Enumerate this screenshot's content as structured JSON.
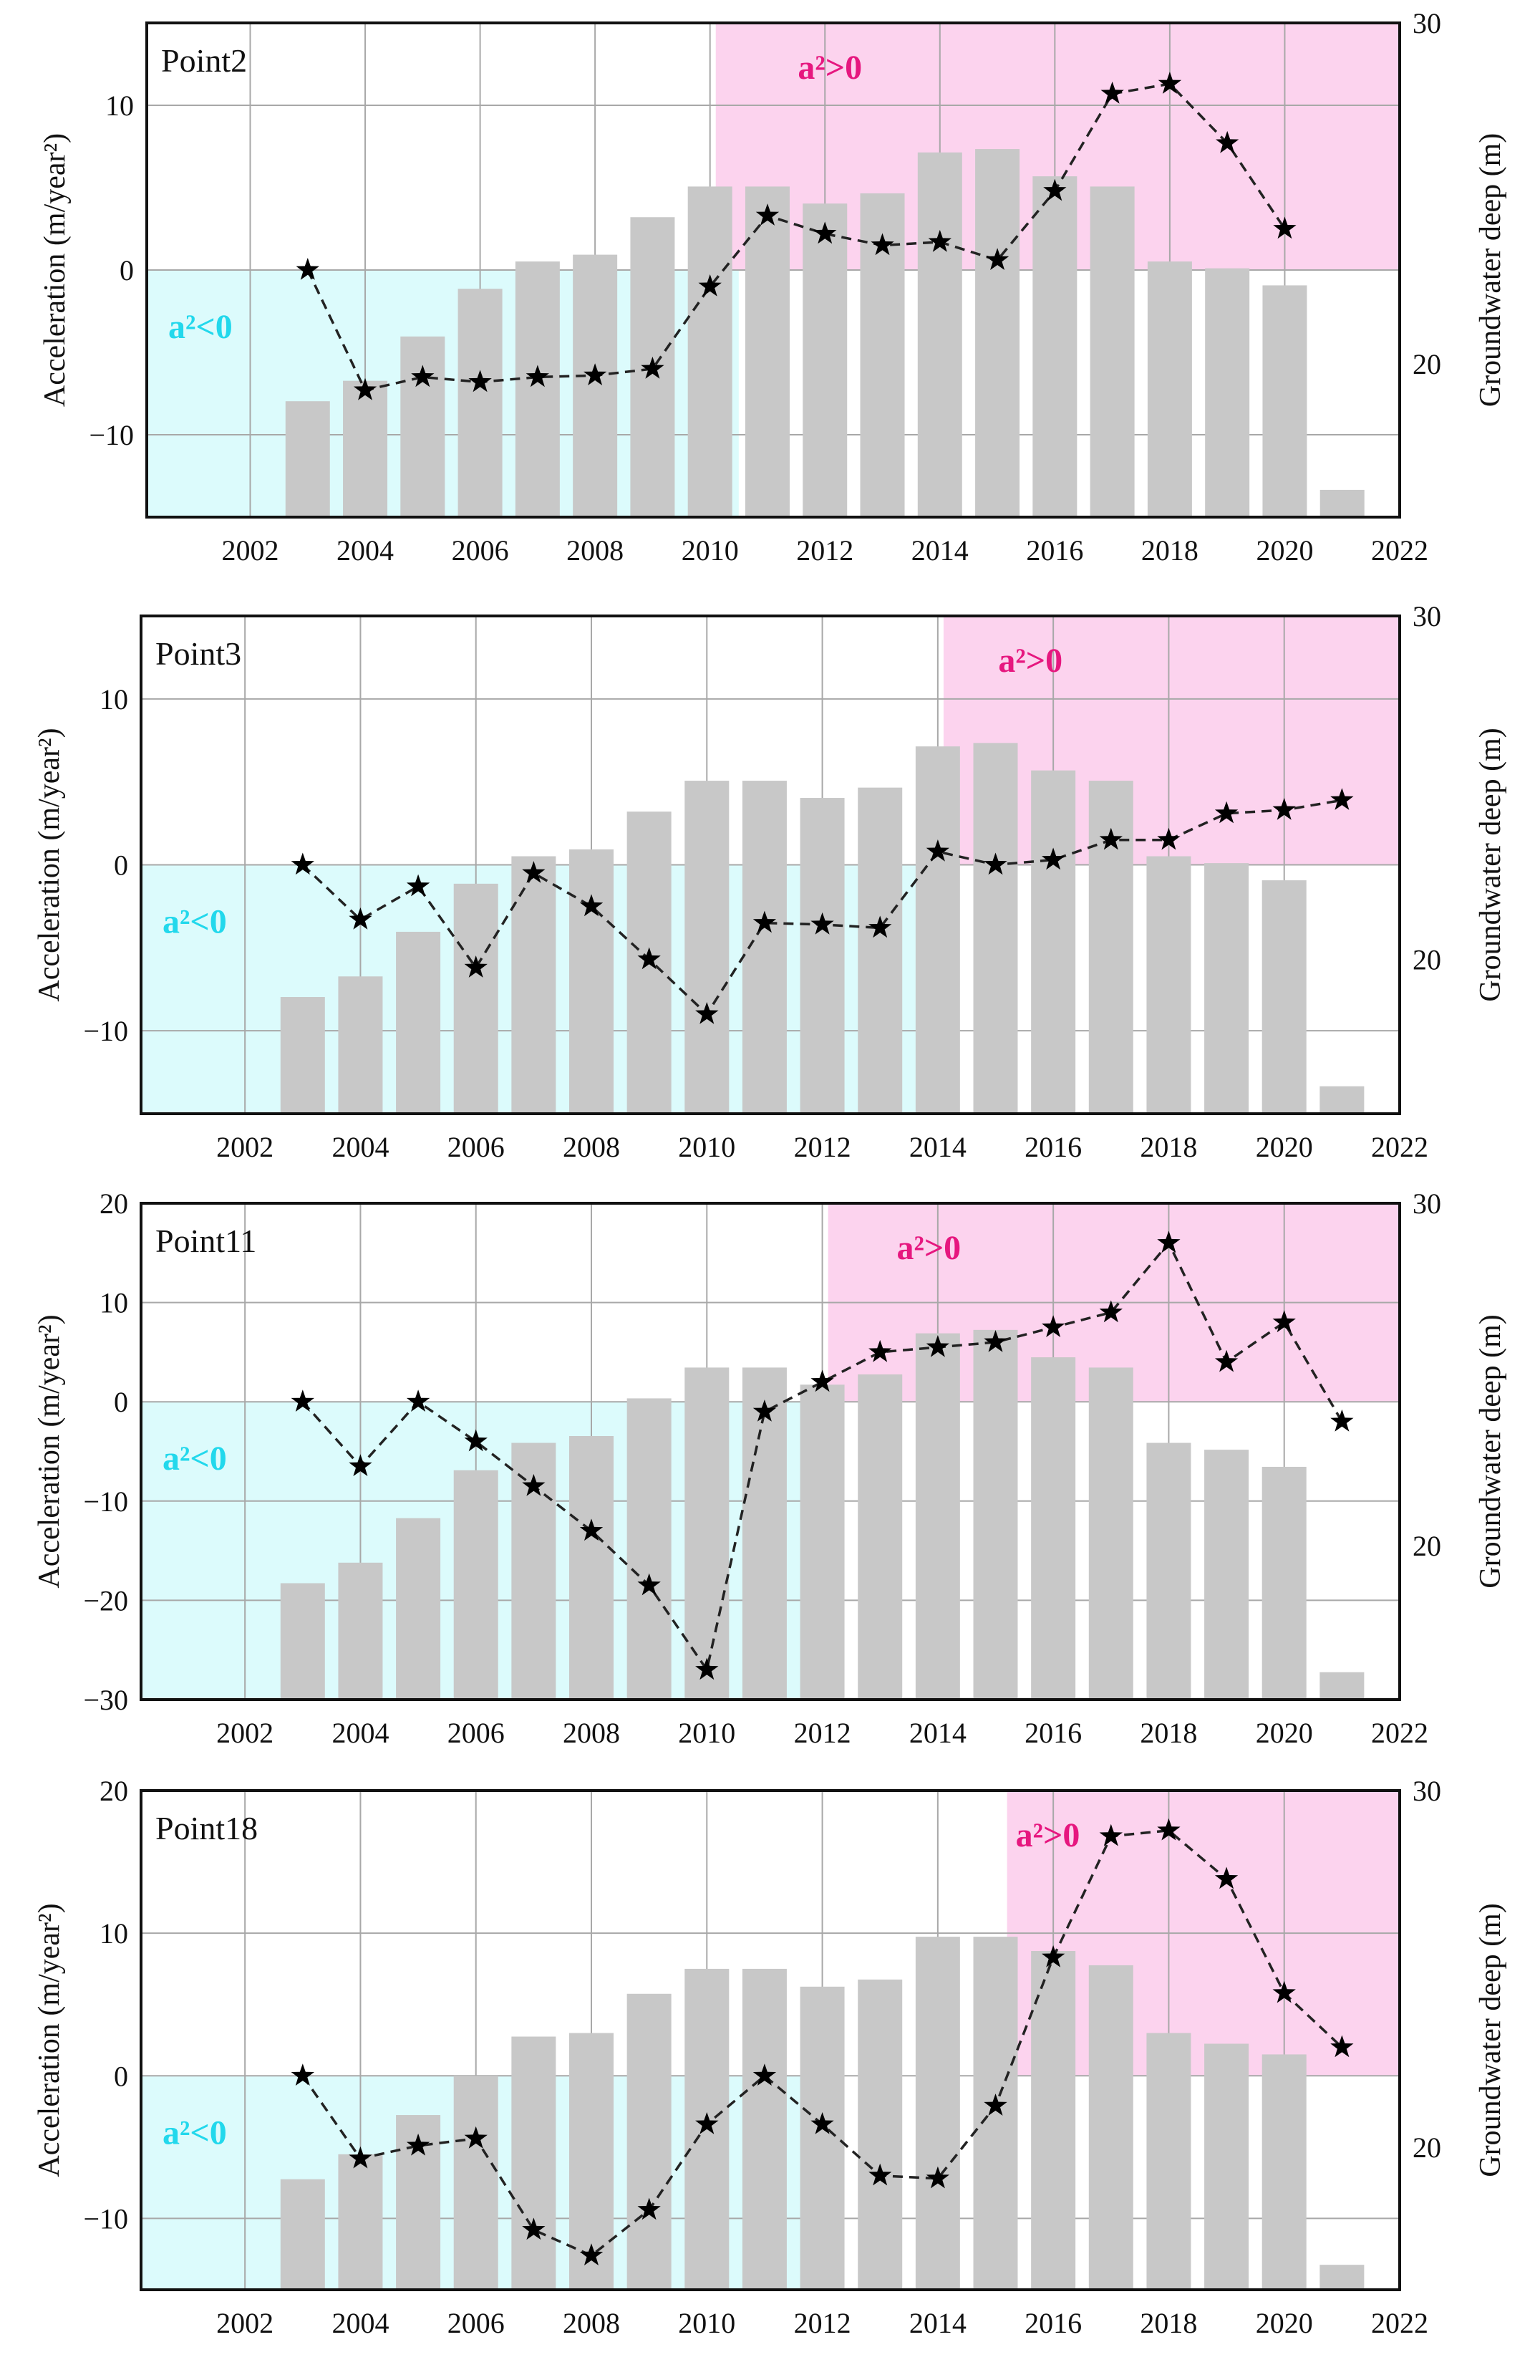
{
  "chart_data": [
    {
      "type": "bar",
      "title": "Point2",
      "categories": [
        2003,
        2004,
        2005,
        2006,
        2007,
        2008,
        2009,
        2010,
        2011,
        2012,
        2013,
        2014,
        2015,
        2016,
        2017,
        2018,
        2019,
        2020,
        2021
      ],
      "x": {
        "range": [
          2000.2,
          2022
        ],
        "ticks": [
          "2002",
          "2004",
          "2006",
          "2008",
          "2010",
          "2012",
          "2014",
          "2016",
          "2018",
          "2020",
          "2022"
        ],
        "tick_values": [
          2002,
          2004,
          2006,
          2008,
          2010,
          2012,
          2014,
          2016,
          2018,
          2020,
          2022
        ]
      },
      "ylabel": "Acceleration (m/year²)",
      "y2label": "Groundwater deep (m)",
      "ylim": [
        -15,
        15
      ],
      "yticks": [
        -10,
        0,
        10
      ],
      "ytick_labels": [
        "−10",
        "0",
        "10"
      ],
      "y2lim": [
        15.5,
        30
      ],
      "y2ticks": [
        20,
        30
      ],
      "y2tick_labels": [
        "20",
        "30"
      ],
      "grid": true,
      "regions": [
        {
          "label": "a²<0",
          "x_from": 2000.2,
          "x_to": 2010.5,
          "y_from": -15,
          "y_to": 0,
          "color": "#dcfbfc",
          "text_color": "#22d8ec"
        },
        {
          "label": "a²>0",
          "x_from": 2010.1,
          "x_to": 2022,
          "y_from": 0,
          "y_to": 15,
          "color": "#fcd3ee",
          "text_color": "#e6177f"
        }
      ],
      "series": [
        {
          "name": "Groundwater deep",
          "type": "bar",
          "axis": "right",
          "color": "#c8c8c8",
          "values": [
            18.9,
            19.5,
            20.8,
            22.2,
            23.0,
            23.2,
            24.3,
            25.2,
            25.2,
            24.7,
            25.0,
            26.2,
            26.3,
            25.5,
            25.2,
            23.0,
            22.8,
            22.3,
            16.3
          ]
        },
        {
          "name": "Acceleration",
          "type": "line",
          "axis": "left",
          "style": "dashed",
          "marker": "star",
          "values": [
            0.0,
            -7.3,
            -6.5,
            -6.8,
            -6.5,
            -6.4,
            -6.0,
            -1.0,
            3.3,
            2.2,
            1.5,
            1.7,
            0.6,
            4.8,
            10.7,
            11.3,
            7.7,
            2.5,
            null
          ]
        }
      ]
    },
    {
      "type": "bar",
      "title": "Point3",
      "categories": [
        2003,
        2004,
        2005,
        2006,
        2007,
        2008,
        2009,
        2010,
        2011,
        2012,
        2013,
        2014,
        2015,
        2016,
        2017,
        2018,
        2019,
        2020,
        2021
      ],
      "x": {
        "range": [
          2000.2,
          2022
        ],
        "ticks": [
          "2002",
          "2004",
          "2006",
          "2008",
          "2010",
          "2012",
          "2014",
          "2016",
          "2018",
          "2020",
          "2022"
        ],
        "tick_values": [
          2002,
          2004,
          2006,
          2008,
          2010,
          2012,
          2014,
          2016,
          2018,
          2020,
          2022
        ]
      },
      "ylabel": "Acceleration (m/year²)",
      "y2label": "Groundwater deep (m)",
      "ylim": [
        -15,
        15
      ],
      "yticks": [
        -10,
        0,
        10
      ],
      "ytick_labels": [
        "−10",
        "0",
        "10"
      ],
      "y2lim": [
        15.5,
        30
      ],
      "y2ticks": [
        20,
        30
      ],
      "y2tick_labels": [
        "20",
        "30"
      ],
      "grid": true,
      "regions": [
        {
          "label": "a²<0",
          "x_from": 2000.2,
          "x_to": 2013.8,
          "y_from": -15,
          "y_to": 0,
          "color": "#dcfbfc",
          "text_color": "#22d8ec"
        },
        {
          "label": "a²>0",
          "x_from": 2014.1,
          "x_to": 2022,
          "y_from": 0,
          "y_to": 15,
          "color": "#fcd3ee",
          "text_color": "#e6177f"
        }
      ],
      "series": [
        {
          "name": "Groundwater deep",
          "type": "bar",
          "axis": "right",
          "color": "#c8c8c8",
          "values": [
            18.9,
            19.5,
            20.8,
            22.2,
            23.0,
            23.2,
            24.3,
            25.2,
            25.2,
            24.7,
            25.0,
            26.2,
            26.3,
            25.5,
            25.2,
            23.0,
            22.8,
            22.3,
            16.3
          ]
        },
        {
          "name": "Acceleration",
          "type": "line",
          "axis": "left",
          "style": "dashed",
          "marker": "star",
          "values": [
            0.0,
            -3.3,
            -1.3,
            -6.2,
            -0.5,
            -2.5,
            -5.7,
            -9.0,
            -3.5,
            -3.6,
            -3.8,
            0.8,
            0.0,
            0.3,
            1.5,
            1.5,
            3.1,
            3.3,
            3.9
          ]
        }
      ]
    },
    {
      "type": "bar",
      "title": "Point11",
      "categories": [
        2003,
        2004,
        2005,
        2006,
        2007,
        2008,
        2009,
        2010,
        2011,
        2012,
        2013,
        2014,
        2015,
        2016,
        2017,
        2018,
        2019,
        2020,
        2021
      ],
      "x": {
        "range": [
          2000.2,
          2022
        ],
        "ticks": [
          "2002",
          "2004",
          "2006",
          "2008",
          "2010",
          "2012",
          "2014",
          "2016",
          "2018",
          "2020",
          "2022"
        ],
        "tick_values": [
          2002,
          2004,
          2006,
          2008,
          2010,
          2012,
          2014,
          2016,
          2018,
          2020,
          2022
        ]
      },
      "ylabel": "Acceleration (m/year²)",
      "y2label": "Groundwater deep (m)",
      "ylim": [
        -30,
        20
      ],
      "yticks": [
        -30,
        -20,
        -10,
        0,
        10,
        20
      ],
      "ytick_labels": [
        "−30",
        "−20",
        "−10",
        "0",
        "10",
        "20"
      ],
      "y2lim": [
        15.5,
        30
      ],
      "y2ticks": [
        20,
        30
      ],
      "y2tick_labels": [
        "20",
        "30"
      ],
      "grid": true,
      "regions": [
        {
          "label": "a²<0",
          "x_from": 2000.2,
          "x_to": 2011.8,
          "y_from": -30,
          "y_to": 0,
          "color": "#dcfbfc",
          "text_color": "#22d8ec"
        },
        {
          "label": "a²>0",
          "x_from": 2012.1,
          "x_to": 2022,
          "y_from": 0,
          "y_to": 20,
          "color": "#fcd3ee",
          "text_color": "#e6177f"
        }
      ],
      "series": [
        {
          "name": "Groundwater deep",
          "type": "bar",
          "axis": "right",
          "color": "#c8c8c8",
          "values": [
            18.9,
            19.5,
            20.8,
            22.2,
            23.0,
            23.2,
            24.3,
            25.2,
            25.2,
            24.7,
            25.0,
            26.2,
            26.3,
            25.5,
            25.2,
            23.0,
            22.8,
            22.3,
            16.3
          ]
        },
        {
          "name": "Acceleration",
          "type": "line",
          "axis": "left",
          "style": "dashed",
          "marker": "star",
          "values": [
            0.0,
            -6.5,
            0.0,
            -4.0,
            -8.5,
            -13.0,
            -18.5,
            -27.0,
            -1.0,
            2.0,
            5.0,
            5.5,
            6.0,
            7.5,
            9.0,
            16.0,
            4.0,
            8.0,
            -2.0
          ]
        }
      ]
    },
    {
      "type": "bar",
      "title": "Point18",
      "categories": [
        2003,
        2004,
        2005,
        2006,
        2007,
        2008,
        2009,
        2010,
        2011,
        2012,
        2013,
        2014,
        2015,
        2016,
        2017,
        2018,
        2019,
        2020,
        2021
      ],
      "x": {
        "range": [
          2000.2,
          2022
        ],
        "ticks": [
          "2002",
          "2004",
          "2006",
          "2008",
          "2010",
          "2012",
          "2014",
          "2016",
          "2018",
          "2020",
          "2022"
        ],
        "tick_values": [
          2002,
          2004,
          2006,
          2008,
          2010,
          2012,
          2014,
          2016,
          2018,
          2020,
          2022
        ]
      },
      "ylabel": "Acceleration (m/year²)",
      "y2label": "Groundwater deep (m)",
      "ylim": [
        -15,
        20
      ],
      "yticks": [
        -10,
        0,
        10,
        20
      ],
      "ytick_labels": [
        "−10",
        "0",
        "10",
        "20"
      ],
      "y2lim": [
        16,
        30
      ],
      "y2ticks": [
        20,
        30
      ],
      "y2tick_labels": [
        "20",
        "30"
      ],
      "grid": true,
      "regions": [
        {
          "label": "a²<0",
          "x_from": 2000.2,
          "x_to": 2011.8,
          "y_from": -15,
          "y_to": 0,
          "color": "#dcfbfc",
          "text_color": "#22d8ec"
        },
        {
          "label": "a²>0",
          "x_from": 2015.2,
          "x_to": 2022,
          "y_from": 0,
          "y_to": 20,
          "color": "#fcd3ee",
          "text_color": "#e6177f"
        }
      ],
      "series": [
        {
          "name": "Groundwater deep",
          "type": "bar",
          "axis": "right",
          "color": "#c8c8c8",
          "values": [
            19.1,
            19.8,
            20.9,
            22.0,
            23.1,
            23.2,
            24.3,
            25.0,
            25.0,
            24.5,
            24.7,
            25.9,
            25.9,
            25.5,
            25.1,
            23.2,
            22.9,
            22.6,
            16.7
          ]
        },
        {
          "name": "Acceleration",
          "type": "line",
          "axis": "left",
          "style": "dashed",
          "marker": "star",
          "values": [
            0.0,
            -5.8,
            -4.9,
            -4.4,
            -10.8,
            -12.6,
            -9.4,
            -3.4,
            0.0,
            -3.4,
            -7.0,
            -7.2,
            -2.1,
            8.3,
            16.8,
            17.2,
            13.8,
            5.8,
            2.0
          ]
        }
      ]
    }
  ]
}
